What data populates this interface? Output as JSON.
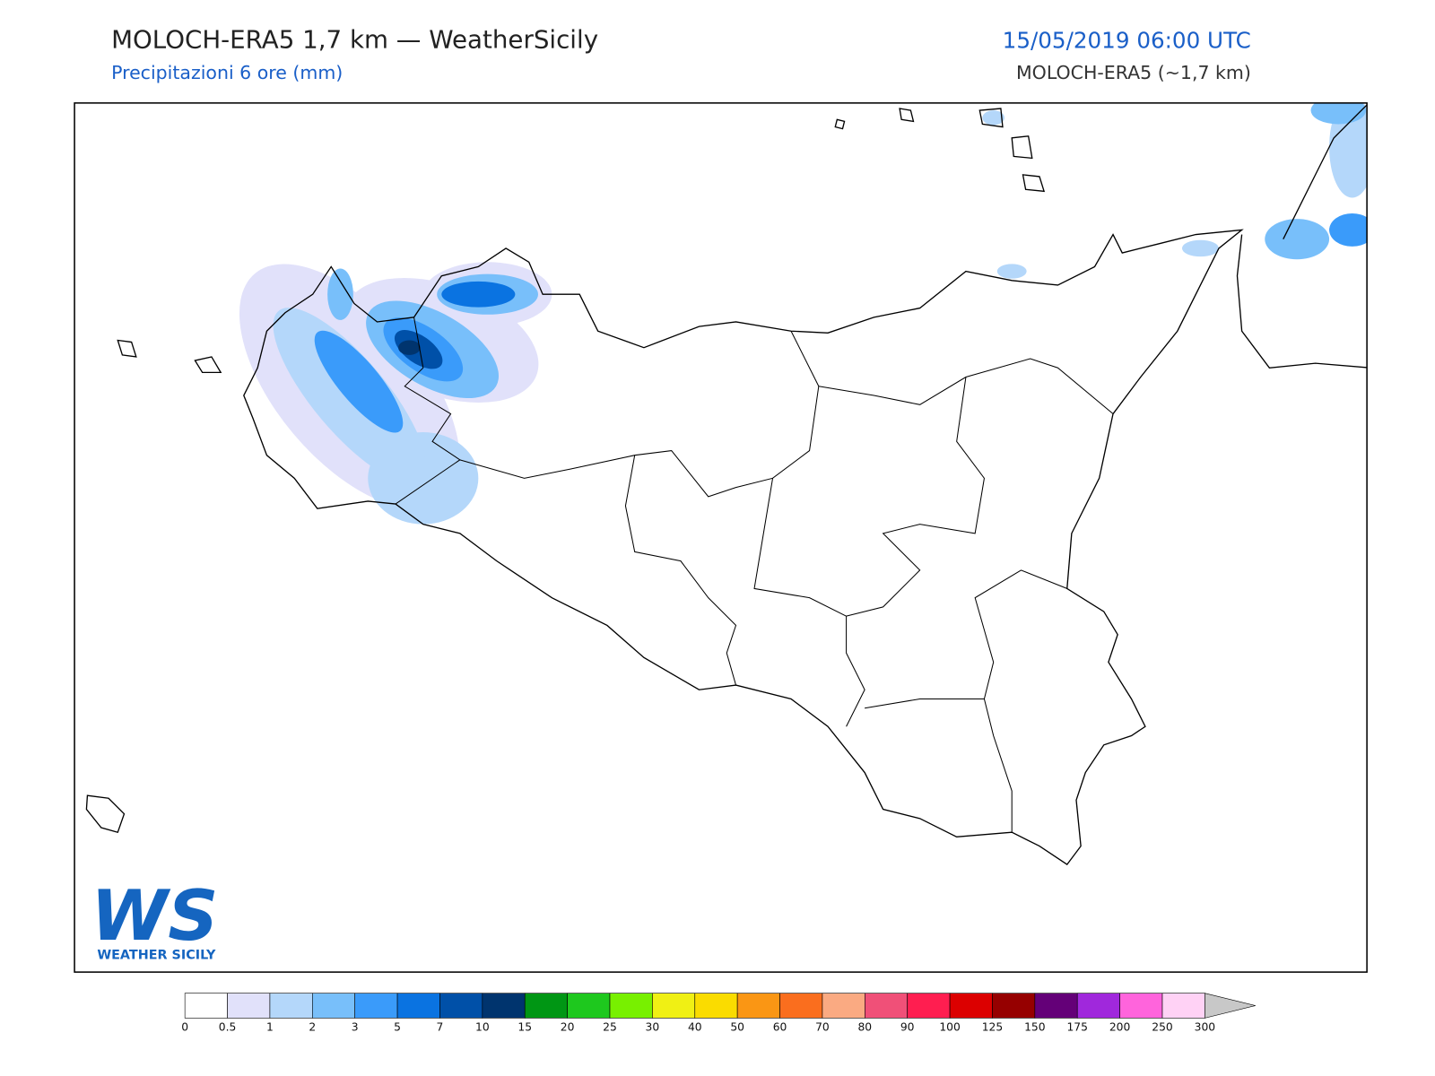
{
  "header": {
    "title": "MOLOCH-ERA5 1,7 km — WeatherSicily",
    "subtitle": "Precipitazioni 6 ore (mm)",
    "datetime": "15/05/2019 06:00 UTC",
    "model": "MOLOCH-ERA5 (~1,7 km)"
  },
  "logo": {
    "letters": "WS",
    "text": "WEATHER SICILY"
  },
  "colorbar": {
    "ticks": [
      "0",
      "0.5",
      "1",
      "2",
      "3",
      "5",
      "7",
      "10",
      "15",
      "20",
      "25",
      "30",
      "40",
      "50",
      "60",
      "70",
      "80",
      "90",
      "100",
      "125",
      "150",
      "175",
      "200",
      "250",
      "300"
    ],
    "colors": [
      "#ffffff",
      "#e1e1fa",
      "#b4d7fa",
      "#78bffa",
      "#3a9bfa",
      "#0a73e1",
      "#0050a8",
      "#00346e",
      "#009614",
      "#1ec81e",
      "#78f000",
      "#f0f014",
      "#fadc00",
      "#fa9614",
      "#fa6e1e",
      "#faaa82",
      "#f05078",
      "#ff1e50",
      "#dc0000",
      "#960000",
      "#640078",
      "#a028dc",
      "#ff64dc",
      "#ffd2f5"
    ],
    "over_color": "#c8c8c8"
  }
}
